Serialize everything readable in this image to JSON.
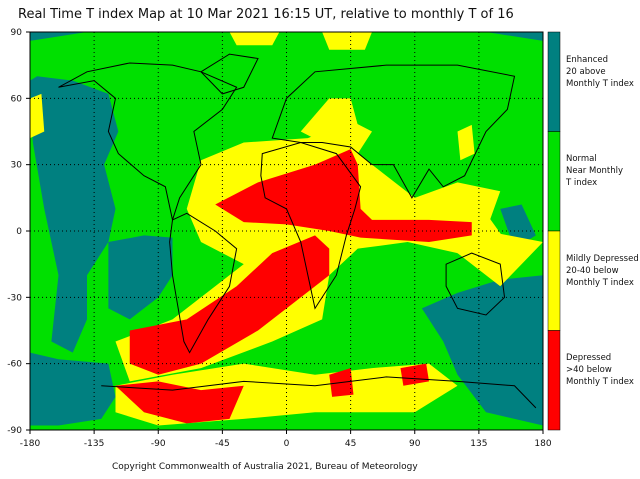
{
  "title": "Real Time T index Map at 10 Mar 2021 16:15 UT, relative to monthly T of 16",
  "x_ticks": [
    "-180",
    "-135",
    "-90",
    "-45",
    "0",
    "45",
    "90",
    "135",
    "180"
  ],
  "x_tick_values": [
    -180,
    -135,
    -90,
    -45,
    0,
    45,
    90,
    135,
    180
  ],
  "y_ticks": [
    "90",
    "60",
    "30",
    "0",
    "-30",
    "-60",
    "-90"
  ],
  "y_tick_values": [
    90,
    60,
    30,
    0,
    -30,
    -60,
    -90
  ],
  "legend": [
    {
      "label": "Enhanced\n20 above\nMonthly T index",
      "color": "#008080"
    },
    {
      "label": "Normal\nNear Monthly\nT index",
      "color": "#00e000"
    },
    {
      "label": "Mildly Depressed\n20-40 below\nMonthly T index",
      "color": "#ffff00"
    },
    {
      "label": "Depressed\n>40 below\nMonthly T index",
      "color": "#ff0000"
    }
  ],
  "copyright": "Copyright Commonwealth of Australia 2021, Bureau of Meteorology"
}
